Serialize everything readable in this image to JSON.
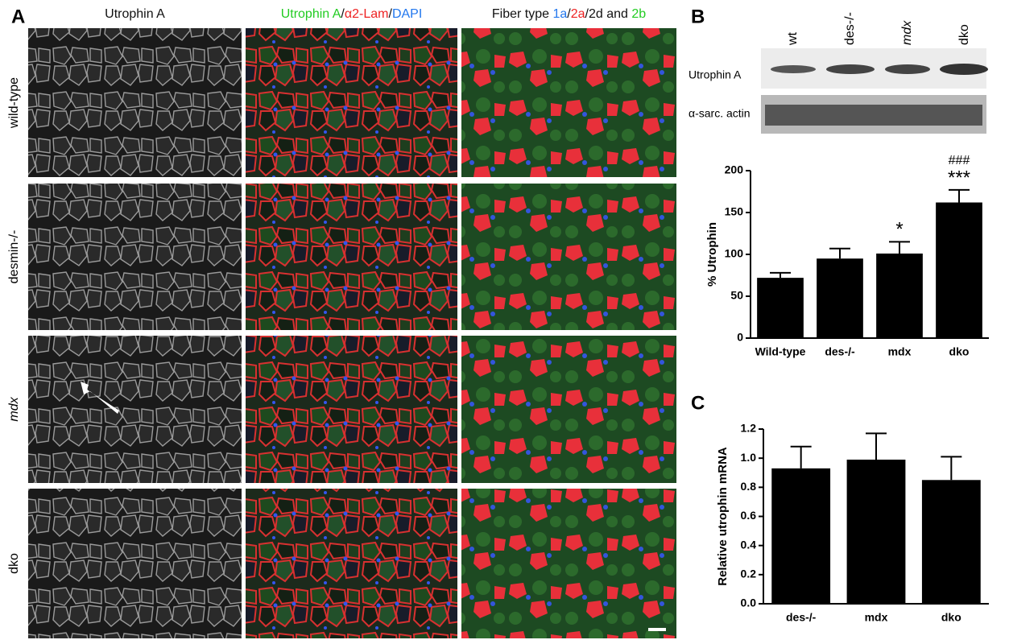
{
  "panels": {
    "a_label": "A",
    "b_label": "B",
    "c_label": "C",
    "columns": [
      {
        "parts": [
          {
            "text": "Utrophin A",
            "color": "#111111"
          }
        ]
      },
      {
        "parts": [
          {
            "text": "Utrophin A",
            "color": "#22cc22"
          },
          {
            "text": "/",
            "color": "#111111"
          },
          {
            "text": "α2-Lam",
            "color": "#ee2222"
          },
          {
            "text": "/",
            "color": "#111111"
          },
          {
            "text": "DAPI",
            "color": "#2277ee"
          }
        ]
      },
      {
        "parts": [
          {
            "text": "Fiber type ",
            "color": "#111111"
          },
          {
            "text": "1a",
            "color": "#2277ee"
          },
          {
            "text": "/",
            "color": "#111111"
          },
          {
            "text": "2a",
            "color": "#ee2222"
          },
          {
            "text": "/2d and ",
            "color": "#111111"
          },
          {
            "text": "2b",
            "color": "#22cc22"
          }
        ]
      }
    ],
    "rows": [
      "wild-type",
      "desmin-/-",
      "mdx",
      "dko"
    ],
    "blot_lanes": [
      "wt",
      "des-/-",
      "mdx",
      "dko"
    ],
    "blot_bands": [
      "Utrophin A",
      "α-sarc. actin"
    ]
  },
  "chart_data": [
    {
      "type": "bar",
      "ylabel": "% Utrophin",
      "categories": [
        "Wild-type",
        "des-/-",
        "mdx",
        "dko"
      ],
      "values": [
        72,
        95,
        101,
        162
      ],
      "errors": [
        6,
        12,
        14,
        15
      ],
      "color": "#000000",
      "annotations": [
        null,
        null,
        "*",
        "***"
      ],
      "annotations_2": [
        null,
        null,
        null,
        "###"
      ],
      "ylim": [
        0,
        200
      ],
      "yticks": [
        0,
        50,
        100,
        150,
        200
      ]
    },
    {
      "type": "bar",
      "ylabel": "Relative utrophin mRNA",
      "categories": [
        "des-/-",
        "mdx",
        "dko"
      ],
      "values": [
        0.93,
        0.99,
        0.85
      ],
      "errors": [
        0.15,
        0.18,
        0.16
      ],
      "color": "#000000",
      "ylim": [
        0,
        1.2
      ],
      "yticks": [
        {
          "value": 0,
          "label": "0.0"
        },
        0.2,
        0.4,
        0.6,
        0.8,
        {
          "value": 1,
          "label": "1.0"
        },
        1.2
      ]
    }
  ]
}
